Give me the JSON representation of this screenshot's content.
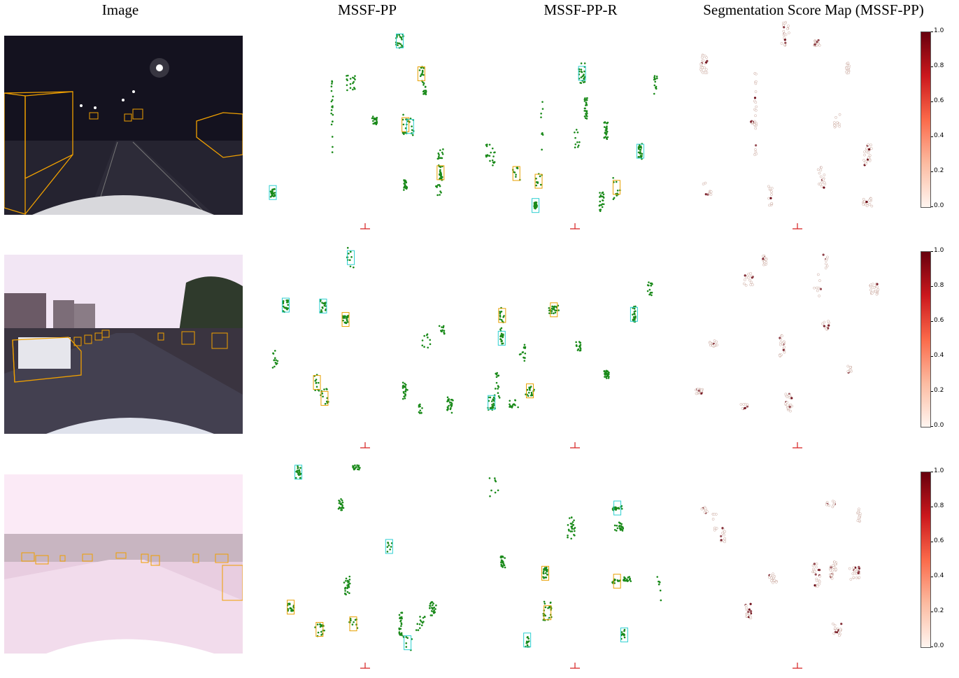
{
  "figure": {
    "column_titles": [
      "Image",
      "MSSF-PP",
      "MSSF-PP-R",
      "Segmentation Score Map (MSSF-PP)"
    ],
    "colorbar_ticks": [
      "1.0",
      "0.8",
      "0.6",
      "0.4",
      "0.2",
      "0.0"
    ],
    "colors": {
      "pred_box": "#e8a000",
      "gt_box": "#2ccfd0",
      "points": "#1a8a1a",
      "ego_marker": "#d62020",
      "score_low": "#fff5f0",
      "score_high": "#67000d"
    },
    "rows": [
      {
        "scene": "night highway",
        "photo_sky": "#14121f",
        "photo_road": "#252330"
      },
      {
        "scene": "dusk urban road",
        "photo_sky": "#f2e6f4",
        "photo_road": "#3a3440"
      },
      {
        "scene": "sunset glare road",
        "photo_sky": "#fbeaf6",
        "photo_road": "#e8cde0"
      }
    ]
  }
}
